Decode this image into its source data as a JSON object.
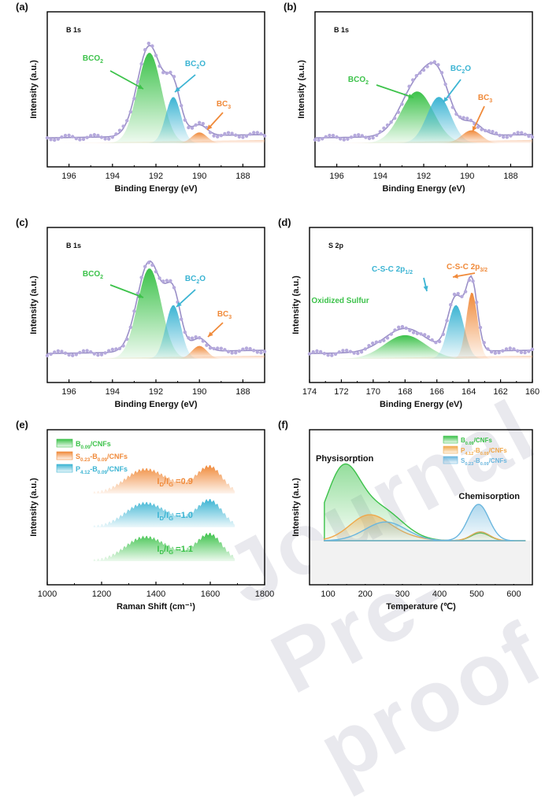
{
  "watermark": "Journal Pre-proof",
  "colors": {
    "green": "#3cc24a",
    "teal": "#3bb4d3",
    "orange": "#f08a3a",
    "envelope": "#9a8fc7",
    "dots": "#b5a9dc",
    "axis": "#000000"
  },
  "chart_data": [
    {
      "panel": "(a)",
      "type": "area",
      "title": "B 1s",
      "xlabel": "Binding Energy (eV)",
      "ylabel": "Intensity (a.u.)",
      "xlim": [
        197,
        187
      ],
      "xticks": [
        196,
        194,
        192,
        190,
        188
      ],
      "series": [
        {
          "name": "BCO2",
          "label_main": "BCO",
          "label_sub": "2",
          "label_tail": "",
          "center": 192.3,
          "height": 0.84,
          "width": 0.55,
          "color": "#3cc24a"
        },
        {
          "name": "BC2O",
          "label_main": "BC",
          "label_sub": "2",
          "label_tail": "O",
          "center": 191.2,
          "height": 0.43,
          "width": 0.35,
          "color": "#3bb4d3"
        },
        {
          "name": "BC3",
          "label_main": "BC",
          "label_sub": "3",
          "label_tail": "",
          "center": 190.0,
          "height": 0.1,
          "width": 0.35,
          "color": "#f08a3a"
        }
      ]
    },
    {
      "panel": "(b)",
      "type": "area",
      "title": "B 1s",
      "xlabel": "Binding Energy (eV)",
      "ylabel": "Intensity (a.u.)",
      "xlim": [
        197,
        187
      ],
      "xticks": [
        196,
        194,
        192,
        190,
        188
      ],
      "series": [
        {
          "name": "BCO2",
          "label_main": "BCO",
          "label_sub": "2",
          "label_tail": "",
          "center": 192.3,
          "height": 0.48,
          "width": 0.75,
          "color": "#3cc24a"
        },
        {
          "name": "BC2O",
          "label_main": "BC",
          "label_sub": "2",
          "label_tail": "O",
          "center": 191.3,
          "height": 0.43,
          "width": 0.55,
          "color": "#3bb4d3"
        },
        {
          "name": "BC3",
          "label_main": "BC",
          "label_sub": "3",
          "label_tail": "",
          "center": 189.8,
          "height": 0.12,
          "width": 0.45,
          "color": "#f08a3a"
        }
      ]
    },
    {
      "panel": "(c)",
      "type": "area",
      "title": "B 1s",
      "xlabel": "Binding Energy (eV)",
      "ylabel": "Intensity (a.u.)",
      "xlim": [
        197,
        187
      ],
      "xticks": [
        196,
        194,
        192,
        190,
        188
      ],
      "series": [
        {
          "name": "BCO2",
          "label_main": "BCO",
          "label_sub": "2",
          "label_tail": "",
          "center": 192.3,
          "height": 0.84,
          "width": 0.55,
          "color": "#3cc24a"
        },
        {
          "name": "BC2O",
          "label_main": "BC",
          "label_sub": "2",
          "label_tail": "O",
          "center": 191.2,
          "height": 0.5,
          "width": 0.35,
          "color": "#3bb4d3"
        },
        {
          "name": "BC3",
          "label_main": "BC",
          "label_sub": "3",
          "label_tail": "",
          "center": 190.0,
          "height": 0.12,
          "width": 0.35,
          "color": "#f08a3a"
        }
      ]
    },
    {
      "panel": "(d)",
      "type": "area",
      "title": "S 2p",
      "xlabel": "Binding Energy (eV)",
      "ylabel": "Intensity (a.u.)",
      "xlim": [
        174,
        160
      ],
      "xticks": [
        174,
        172,
        170,
        168,
        166,
        164,
        162,
        160
      ],
      "series": [
        {
          "name": "Oxidized Sulfur",
          "label_main": "Oxidized Sulfur",
          "label_sub": "",
          "label_tail": "",
          "center": 168.0,
          "height": 0.22,
          "width": 1.3,
          "color": "#3cc24a"
        },
        {
          "name": "C-S-C 2p1/2",
          "label_main": "C-S-C 2p",
          "label_sub": "1/2",
          "label_tail": "",
          "center": 164.8,
          "height": 0.5,
          "width": 0.5,
          "color": "#3bb4d3"
        },
        {
          "name": "C-S-C 2p3/2",
          "label_main": "C-S-C 2p",
          "label_sub": "3/2",
          "label_tail": "",
          "center": 163.8,
          "height": 0.62,
          "width": 0.35,
          "color": "#f08a3a"
        }
      ]
    },
    {
      "panel": "(e)",
      "type": "area",
      "xlabel": "Raman Shift (cm⁻¹)",
      "ylabel": "Intensity (a.u.)",
      "xlim": [
        1000,
        1800
      ],
      "xticks": [
        1000,
        1200,
        1400,
        1600,
        1800
      ],
      "series": [
        {
          "name": "S0.23-B0.09/CNFs",
          "legend_parts": [
            "S",
            "0.23",
            "-B",
            "0.09",
            "/CNFs"
          ],
          "color": "#f08a3a",
          "ratio_label": "=0.9",
          "offset": 2,
          "D_center": 1355,
          "G_center": 1600
        },
        {
          "name": "P4.12-B0.09/CNFs",
          "legend_parts": [
            "P",
            "4.12",
            "-B",
            "0.09",
            "/CNFs"
          ],
          "color": "#3bb4d3",
          "ratio_label": "=1.0",
          "offset": 1,
          "D_center": 1355,
          "G_center": 1600
        },
        {
          "name": "B0.09/CNFs",
          "legend_parts": [
            "B",
            "0.09",
            "/CNFs"
          ],
          "color": "#3cc24a",
          "ratio_label": "=1.1",
          "offset": 0,
          "D_center": 1355,
          "G_center": 1600
        }
      ],
      "legend_order": [
        "B0.09/CNFs",
        "S0.23-B0.09/CNFs",
        "P4.12-B0.09/CNFs"
      ],
      "ratio_main": "I",
      "ratio_sub_D": "D",
      "ratio_sub_G": "G"
    },
    {
      "panel": "(f)",
      "type": "area",
      "xlabel": "Temperature (℃)",
      "ylabel": "Intensity (a.u.)",
      "xlim": [
        50,
        650
      ],
      "xticks": [
        100,
        200,
        300,
        400,
        500,
        600
      ],
      "annotations": [
        "Physisorption",
        "Chemisorption"
      ],
      "series": [
        {
          "name": "B0.09/CNFs",
          "legend_parts": [
            "B",
            "0.09",
            "/CNFs"
          ],
          "color": "#3cc24a",
          "peaks": [
            [
              140,
              0.62,
              45
            ],
            [
              240,
              0.28,
              60
            ],
            [
              510,
              0.07,
              25
            ]
          ]
        },
        {
          "name": "P4.12-B0.09/CNFs",
          "legend_parts": [
            "P",
            "4.12",
            "-B",
            "0.09",
            "/CNFs"
          ],
          "color": "#f0a84a",
          "peaks": [
            [
              205,
              0.2,
              50
            ],
            [
              270,
              0.06,
              60
            ],
            [
              510,
              0.08,
              25
            ]
          ]
        },
        {
          "name": "S0.23-B0.09/CNFs",
          "legend_parts": [
            "S",
            "0.23",
            "-B",
            "0.09",
            "/CNFs"
          ],
          "color": "#6ab6de",
          "peaks": [
            [
              255,
              0.17,
              55
            ],
            [
              505,
              0.33,
              28
            ]
          ]
        }
      ]
    }
  ]
}
